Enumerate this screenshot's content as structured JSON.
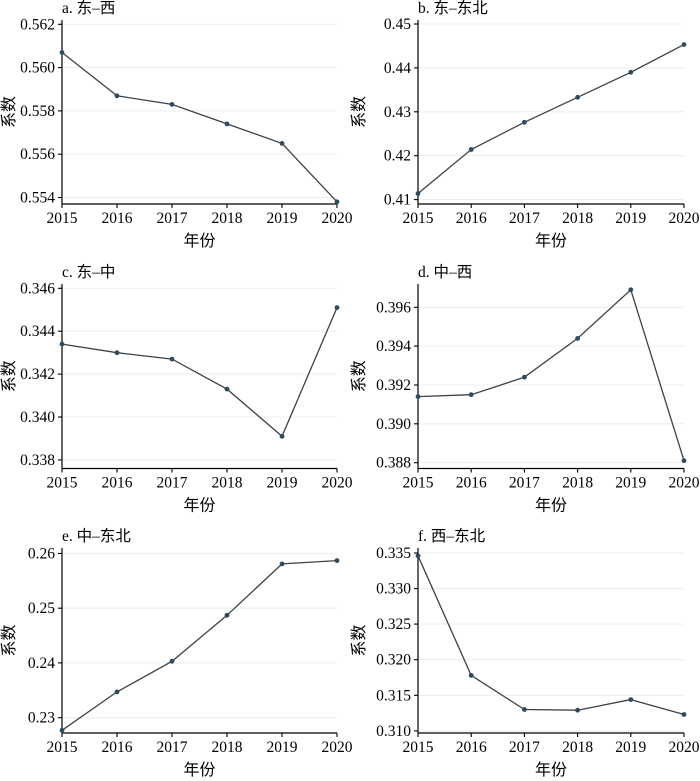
{
  "figure": {
    "background": "#ffffff",
    "colors": {
      "line": "#3d4247",
      "marker": "#2e4a5c",
      "grid": "#e9f1ee",
      "axis": "#000000",
      "text": "#000000"
    }
  },
  "chart_data": [
    {
      "type": "line",
      "panel": "a",
      "title": "a. 东–西",
      "xlabel": "年份",
      "ylabel": "系数",
      "x": [
        2015,
        2016,
        2017,
        2018,
        2019,
        2020
      ],
      "x_tick_labels": [
        "2015",
        "2016",
        "2017",
        "2018",
        "2019",
        "2020"
      ],
      "values": [
        0.5607,
        0.5587,
        0.5583,
        0.5574,
        0.5565,
        0.5538
      ],
      "yticks": [
        0.554,
        0.556,
        0.558,
        0.56,
        0.562
      ],
      "ytick_labels": [
        "0.554",
        "0.556",
        "0.558",
        "0.560",
        "0.562"
      ],
      "ylim": [
        0.5537,
        0.5622
      ],
      "xlim": [
        2015,
        2020
      ],
      "grid": true,
      "legend": null
    },
    {
      "type": "line",
      "panel": "b",
      "title": "b. 东–东北",
      "xlabel": "年份",
      "ylabel": "系数",
      "x": [
        2015,
        2016,
        2017,
        2018,
        2019,
        2020
      ],
      "x_tick_labels": [
        "2015",
        "2016",
        "2017",
        "2018",
        "2019",
        "2020"
      ],
      "values": [
        0.4114,
        0.4214,
        0.4276,
        0.4333,
        0.439,
        0.4453
      ],
      "yticks": [
        0.41,
        0.42,
        0.43,
        0.44,
        0.45
      ],
      "ytick_labels": [
        "0.41",
        "0.42",
        "0.43",
        "0.44",
        "0.45"
      ],
      "ylim": [
        0.409,
        0.4509
      ],
      "xlim": [
        2015,
        2020
      ],
      "grid": true,
      "legend": null
    },
    {
      "type": "line",
      "panel": "c",
      "title": "c. 东–中",
      "xlabel": "年份",
      "ylabel": "系数",
      "x": [
        2015,
        2016,
        2017,
        2018,
        2019,
        2020
      ],
      "x_tick_labels": [
        "2015",
        "2016",
        "2017",
        "2018",
        "2019",
        "2020"
      ],
      "values": [
        0.3434,
        0.343,
        0.3427,
        0.3413,
        0.3391,
        0.3451
      ],
      "yticks": [
        0.338,
        0.34,
        0.342,
        0.344,
        0.346
      ],
      "ytick_labels": [
        "0.338",
        "0.340",
        "0.342",
        "0.344",
        "0.346"
      ],
      "ylim": [
        0.3376,
        0.3462
      ],
      "xlim": [
        2015,
        2020
      ],
      "grid": true,
      "legend": null
    },
    {
      "type": "line",
      "panel": "d",
      "title": "d. 中–西",
      "xlabel": "年份",
      "ylabel": "系数",
      "x": [
        2015,
        2016,
        2017,
        2018,
        2019,
        2020
      ],
      "x_tick_labels": [
        "2015",
        "2016",
        "2017",
        "2018",
        "2019",
        "2020"
      ],
      "values": [
        0.3914,
        0.3915,
        0.3924,
        0.3944,
        0.3969,
        0.3881
      ],
      "yticks": [
        0.388,
        0.39,
        0.392,
        0.394,
        0.396
      ],
      "ytick_labels": [
        "0.388",
        "0.390",
        "0.392",
        "0.394",
        "0.396"
      ],
      "ylim": [
        0.3877,
        0.3972
      ],
      "xlim": [
        2015,
        2020
      ],
      "grid": true,
      "legend": null
    },
    {
      "type": "line",
      "panel": "e",
      "title": "e. 中–东北",
      "xlabel": "年份",
      "ylabel": "系数",
      "x": [
        2015,
        2016,
        2017,
        2018,
        2019,
        2020
      ],
      "x_tick_labels": [
        "2015",
        "2016",
        "2017",
        "2018",
        "2019",
        "2020"
      ],
      "values": [
        0.2277,
        0.2347,
        0.2403,
        0.2487,
        0.2581,
        0.2587
      ],
      "yticks": [
        0.23,
        0.24,
        0.25,
        0.26
      ],
      "ytick_labels": [
        "0.23",
        "0.24",
        "0.25",
        "0.26"
      ],
      "ylim": [
        0.2272,
        0.261
      ],
      "xlim": [
        2015,
        2020
      ],
      "grid": true,
      "legend": null
    },
    {
      "type": "line",
      "panel": "f",
      "title": "f. 西–东北",
      "xlabel": "年份",
      "ylabel": "系数",
      "x": [
        2015,
        2016,
        2017,
        2018,
        2019,
        2020
      ],
      "x_tick_labels": [
        "2015",
        "2016",
        "2017",
        "2018",
        "2019",
        "2020"
      ],
      "values": [
        0.3346,
        0.3178,
        0.313,
        0.3129,
        0.3144,
        0.3123
      ],
      "yticks": [
        0.31,
        0.315,
        0.32,
        0.325,
        0.33,
        0.335
      ],
      "ytick_labels": [
        "0.310",
        "0.315",
        "0.320",
        "0.325",
        "0.330",
        "0.335"
      ],
      "ylim": [
        0.3097,
        0.3357
      ],
      "xlim": [
        2015,
        2020
      ],
      "grid": true,
      "legend": null
    }
  ]
}
